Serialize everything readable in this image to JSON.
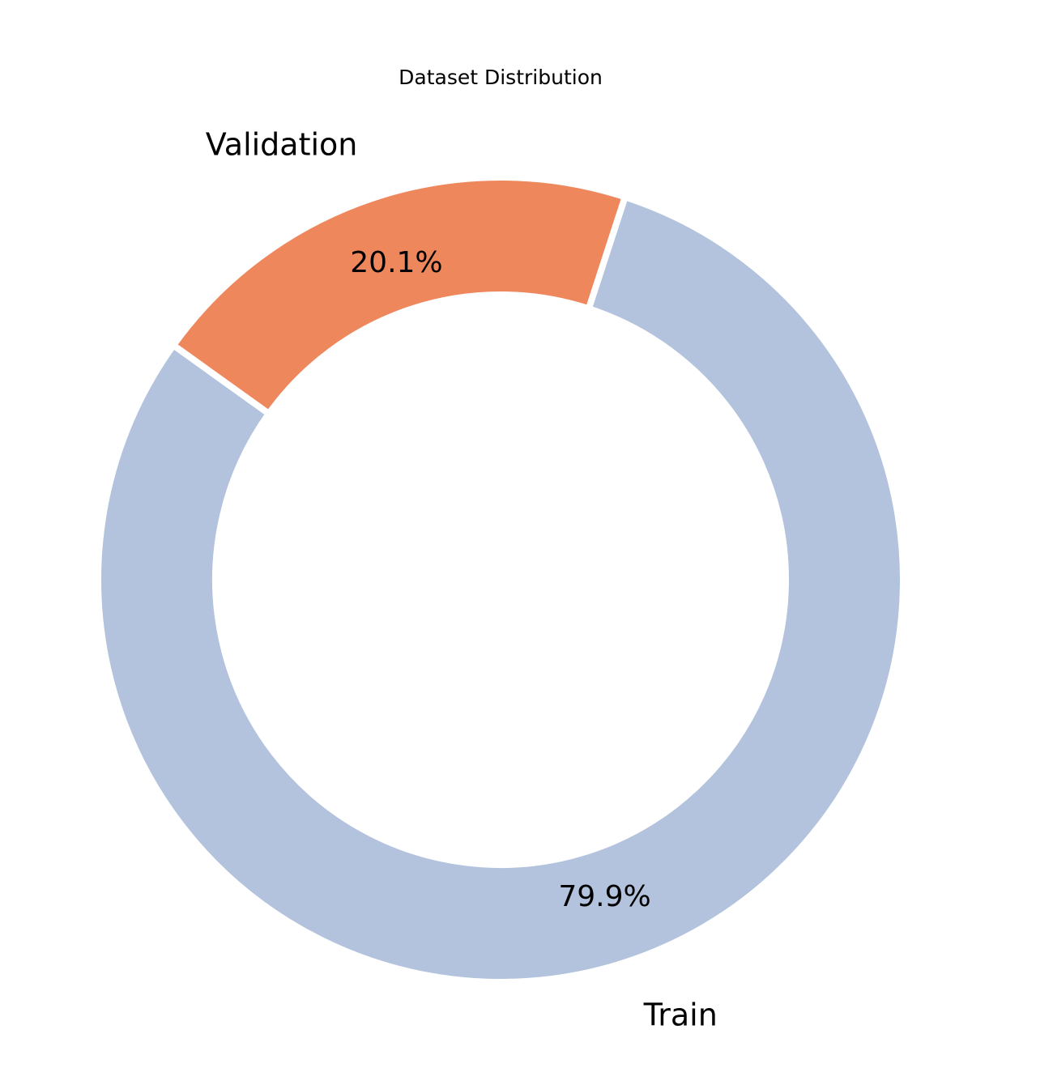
{
  "chart_data": {
    "type": "pie",
    "title": "Dataset Distribution",
    "categories": [
      "Train",
      "Validation"
    ],
    "values": [
      79.9,
      20.1
    ],
    "percent_labels": [
      "79.9%",
      "20.1%"
    ],
    "colors": [
      "#b3c3dd",
      "#ef875d"
    ],
    "donut": true,
    "start_angle_deg": 72,
    "direction": "clockwise",
    "legend": "none"
  }
}
